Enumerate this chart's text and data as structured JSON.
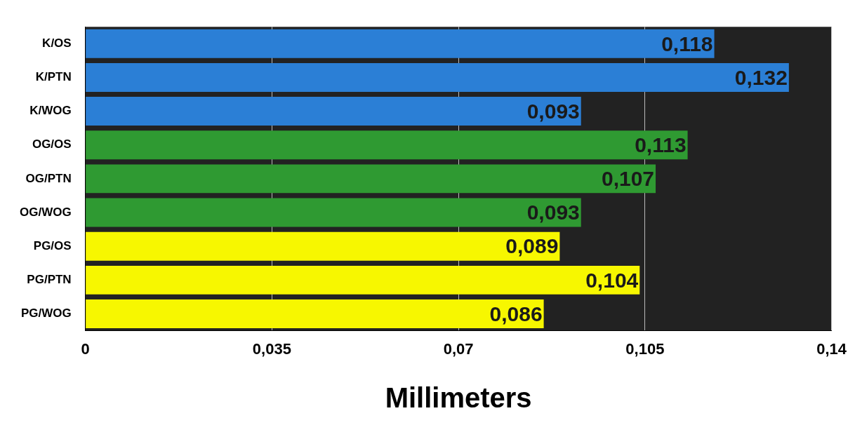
{
  "chart_data": {
    "type": "bar",
    "orientation": "horizontal",
    "xlabel": "Millimeters",
    "categories": [
      "K/OS",
      "K/PTN",
      "K/WOG",
      "OG/OS",
      "OG/PTN",
      "OG/WOG",
      "PG/OS",
      "PG/PTN",
      "PG/WOG"
    ],
    "values": [
      0.118,
      0.132,
      0.093,
      0.113,
      0.107,
      0.093,
      0.089,
      0.104,
      0.086
    ],
    "value_labels": [
      "0,118",
      "0,132",
      "0,093",
      "0,113",
      "0,107",
      "0,093",
      "0,089",
      "0,104",
      "0,086"
    ],
    "colors": [
      "#2b7fd6",
      "#2b7fd6",
      "#2b7fd6",
      "#2f9a32",
      "#2f9a32",
      "#2f9a32",
      "#f7f700",
      "#f7f700",
      "#f7f700"
    ],
    "xlim": [
      0,
      0.14
    ],
    "xticks": [
      0,
      {
        "value": 0.035,
        "label": "0,035"
      },
      {
        "value": 0.07,
        "label": "0,07"
      },
      {
        "value": 0.105,
        "label": "0,105"
      },
      {
        "value": 0.14,
        "label": "0,14"
      }
    ],
    "grid": "x",
    "legend": false
  }
}
